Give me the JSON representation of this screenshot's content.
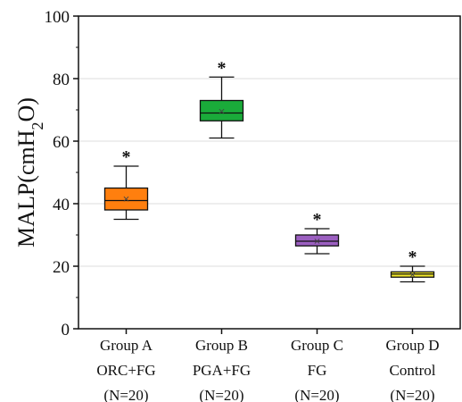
{
  "chart_data": {
    "type": "box",
    "ylabel": "MALP(cmH2O)",
    "ylim": [
      0,
      100
    ],
    "yticks": [
      0,
      20,
      40,
      60,
      80,
      100
    ],
    "grid": true,
    "categories": [
      {
        "lines": [
          "Group A",
          "ORC+FG",
          "(N=20)"
        ],
        "min": 35,
        "q1": 38,
        "median": 41,
        "q3": 45,
        "max": 52,
        "mean": 41.5,
        "significance": "*",
        "color": "#ff7f0e"
      },
      {
        "lines": [
          "Group B",
          "PGA+FG",
          "(N=20)"
        ],
        "min": 61,
        "q1": 66.5,
        "median": 69,
        "q3": 73,
        "max": 80.5,
        "mean": 69.5,
        "significance": "*",
        "color": "#1aab3a"
      },
      {
        "lines": [
          "Group C",
          "FG",
          "(N=20)"
        ],
        "min": 24,
        "q1": 26.5,
        "median": 28,
        "q3": 30,
        "max": 32,
        "mean": 28,
        "significance": "*",
        "color": "#9b5fc0"
      },
      {
        "lines": [
          "Group D",
          "Control",
          "(N=20)"
        ],
        "min": 15,
        "q1": 16.5,
        "median": 17.5,
        "q3": 18.2,
        "max": 20,
        "mean": 17.3,
        "significance": "*",
        "color": "#f0e62a"
      }
    ]
  }
}
